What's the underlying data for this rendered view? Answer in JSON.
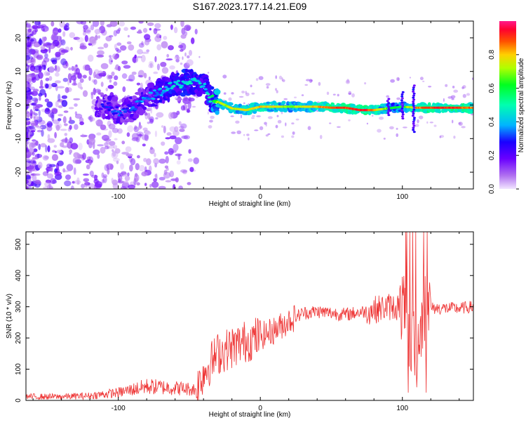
{
  "title": "S167.2023.177.14.21.E09",
  "chart_data": [
    {
      "type": "heatmap",
      "xlabel": "Height of straight line (km)",
      "ylabel": "Frequency (Hz)",
      "xlim": [
        -165,
        150
      ],
      "ylim": [
        -25,
        25
      ],
      "xticks": [
        -100,
        0,
        100
      ],
      "yticks": [
        -20,
        -10,
        0,
        10,
        20
      ],
      "colorbar": {
        "label": "Normalized spectral amplitude",
        "range": [
          0,
          1
        ],
        "ticks": [
          "0.0",
          "0.2",
          "0.4",
          "0.6",
          "0.8"
        ],
        "colors": [
          "#f2e6ff",
          "#8a2be2",
          "#2a00ff",
          "#00c8ff",
          "#00ff40",
          "#ffff00",
          "#ff8000",
          "#ff0040",
          "#ff1a8c"
        ]
      },
      "ridge": {
        "x": [
          -110,
          -100,
          -90,
          -80,
          -70,
          -60,
          -50,
          -40,
          -35,
          -30,
          -20,
          -10,
          0,
          10,
          20,
          30,
          40,
          50,
          60,
          70,
          80,
          90,
          100,
          110,
          120,
          130,
          140,
          150
        ],
        "y": [
          0,
          -2,
          -1,
          2,
          4,
          6,
          7,
          6,
          2,
          1,
          -1,
          -1.5,
          -0.5,
          -0.5,
          -0.5,
          -0.5,
          -0.5,
          -0.8,
          -0.8,
          -1.5,
          -1.5,
          -1,
          -0.5,
          -0.8,
          -0.8,
          -0.8,
          -0.8,
          -0.8
        ],
        "amplitude": [
          0.25,
          0.3,
          0.3,
          0.35,
          0.4,
          0.45,
          0.45,
          0.4,
          0.5,
          0.7,
          0.75,
          0.75,
          0.8,
          0.75,
          0.7,
          0.75,
          0.8,
          0.9,
          0.9,
          0.95,
          0.85,
          0.65,
          0.6,
          0.85,
          0.9,
          0.9,
          0.9,
          0.85
        ]
      }
    },
    {
      "type": "line",
      "xlabel": "Height of straight line (km)",
      "ylabel": "SNR (10 * v/v)",
      "xlim": [
        -165,
        150
      ],
      "ylim": [
        0,
        540
      ],
      "xticks": [
        -100,
        0,
        100
      ],
      "yticks": [
        0,
        100,
        200,
        300,
        400,
        500
      ],
      "line_color": "#ee3333",
      "trend": {
        "x": [
          -165,
          -140,
          -120,
          -100,
          -80,
          -60,
          -45,
          -40,
          -35,
          -30,
          -20,
          -10,
          0,
          10,
          20,
          30,
          40,
          60,
          80,
          90,
          100,
          105,
          110,
          115,
          120,
          140,
          150
        ],
        "y": [
          12,
          12,
          15,
          25,
          45,
          40,
          35,
          90,
          120,
          150,
          170,
          190,
          205,
          225,
          255,
          280,
          285,
          275,
          290,
          300,
          300,
          200,
          150,
          300,
          295,
          295,
          300
        ]
      }
    }
  ]
}
